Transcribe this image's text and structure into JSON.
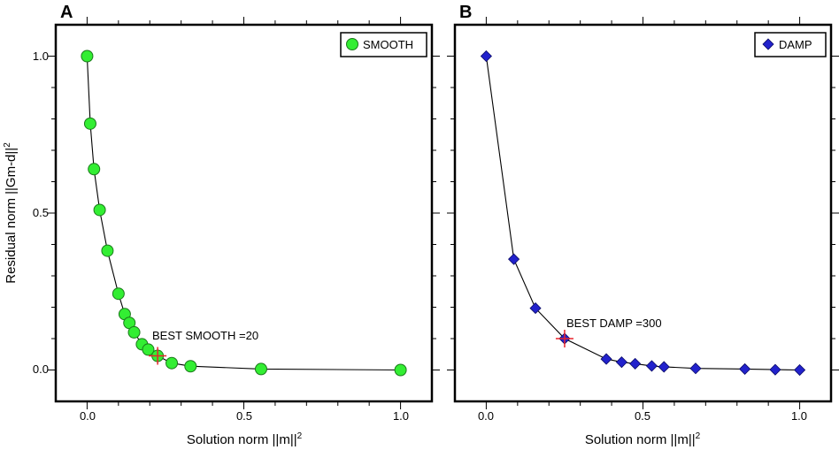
{
  "chart_data": [
    {
      "panel": "A",
      "type": "line",
      "xlabel": "Solution norm ||m||",
      "xlabel_sup": "2",
      "ylabel": "Residual norm ||Gm-d||",
      "ylabel_sup": "2",
      "xlim": [
        -0.1,
        1.1
      ],
      "ylim": [
        -0.1,
        1.1
      ],
      "x_ticks": [
        0.0,
        0.5,
        1.0
      ],
      "x_tick_labels": [
        "0.0",
        "0.5",
        "1.0"
      ],
      "y_ticks": [
        0.0,
        0.5,
        1.0
      ],
      "y_tick_labels": [
        "0.0",
        "0.5",
        "1.0"
      ],
      "grid": false,
      "legend": {
        "label": "SMOOTH",
        "position": "top-right"
      },
      "series": [
        {
          "name": "SMOOTH",
          "marker": "circle",
          "color": "#33ee33",
          "x": [
            0.0,
            0.01,
            0.022,
            0.04,
            0.065,
            0.1,
            0.12,
            0.135,
            0.15,
            0.175,
            0.195,
            0.225,
            0.27,
            0.33,
            0.555,
            1.0
          ],
          "y": [
            1.0,
            0.785,
            0.64,
            0.51,
            0.38,
            0.243,
            0.178,
            0.15,
            0.12,
            0.082,
            0.065,
            0.045,
            0.022,
            0.012,
            0.003,
            0.0
          ]
        }
      ],
      "best": {
        "x": 0.225,
        "y": 0.045,
        "label": "BEST SMOOTH =20",
        "color": "#e8242c"
      }
    },
    {
      "panel": "B",
      "type": "line",
      "xlabel": "Solution norm ||m||",
      "xlabel_sup": "2",
      "xlim": [
        -0.1,
        1.1
      ],
      "ylim": [
        -0.1,
        1.1
      ],
      "x_ticks": [
        0.0,
        0.5,
        1.0
      ],
      "x_tick_labels": [
        "0.0",
        "0.5",
        "1.0"
      ],
      "y_ticks": [
        0.0,
        0.5,
        1.0
      ],
      "grid": false,
      "legend": {
        "label": "DAMP",
        "position": "top-right"
      },
      "series": [
        {
          "name": "DAMP",
          "marker": "diamond",
          "color": "#2222cc",
          "x": [
            0.0,
            0.088,
            0.157,
            0.25,
            0.383,
            0.432,
            0.475,
            0.528,
            0.567,
            0.668,
            0.825,
            0.922,
            1.0
          ],
          "y": [
            1.0,
            0.353,
            0.197,
            0.1,
            0.035,
            0.025,
            0.02,
            0.013,
            0.01,
            0.005,
            0.003,
            0.001,
            0.0
          ]
        }
      ],
      "best": {
        "x": 0.25,
        "y": 0.1,
        "label": "BEST DAMP =300",
        "color": "#e8242c"
      }
    }
  ]
}
